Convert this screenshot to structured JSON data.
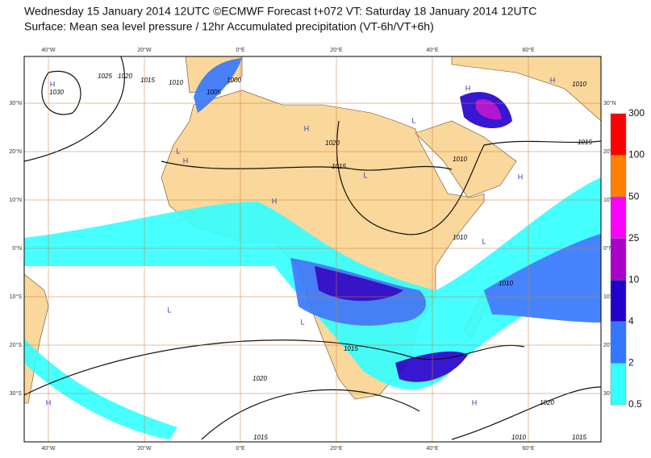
{
  "header": {
    "title": "Wednesday 15 January 2014 12UTC ©ECMWF Forecast t+072 VT: Saturday 18 January 2014 12UTC",
    "subtitle": "Surface: Mean sea level pressure / 12hr Accumulated precipitation (VT-6h/VT+6h)"
  },
  "map": {
    "longitudes": [
      "40°W",
      "20°W",
      "0°E",
      "20°E",
      "40°E",
      "60°E"
    ],
    "latitudes": [
      "30°N",
      "20°N",
      "10°N",
      "0°N",
      "10°S",
      "20°S",
      "30°S"
    ],
    "contour_labels": [
      "1025",
      "1020",
      "1015",
      "1010",
      "1030",
      "1005",
      "1000",
      "1020",
      "1015",
      "1010",
      "1010",
      "1015",
      "1010",
      "1010",
      "1015",
      "1020",
      "1020",
      "1015",
      "1010",
      "1015"
    ],
    "pressure_centers": [
      "H",
      "L",
      "H",
      "H",
      "L",
      "L",
      "H",
      "H",
      "L",
      "H",
      "L",
      "H",
      "H",
      "L",
      "H"
    ]
  },
  "legend": {
    "levels": [
      "300",
      "100",
      "50",
      "25",
      "10",
      "4",
      "2",
      "0.5"
    ],
    "colors": [
      "#ff0000",
      "#ff8000",
      "#ff00ff",
      "#aa00cc",
      "#2200cc",
      "#3377ff",
      "#33ffff"
    ]
  }
}
